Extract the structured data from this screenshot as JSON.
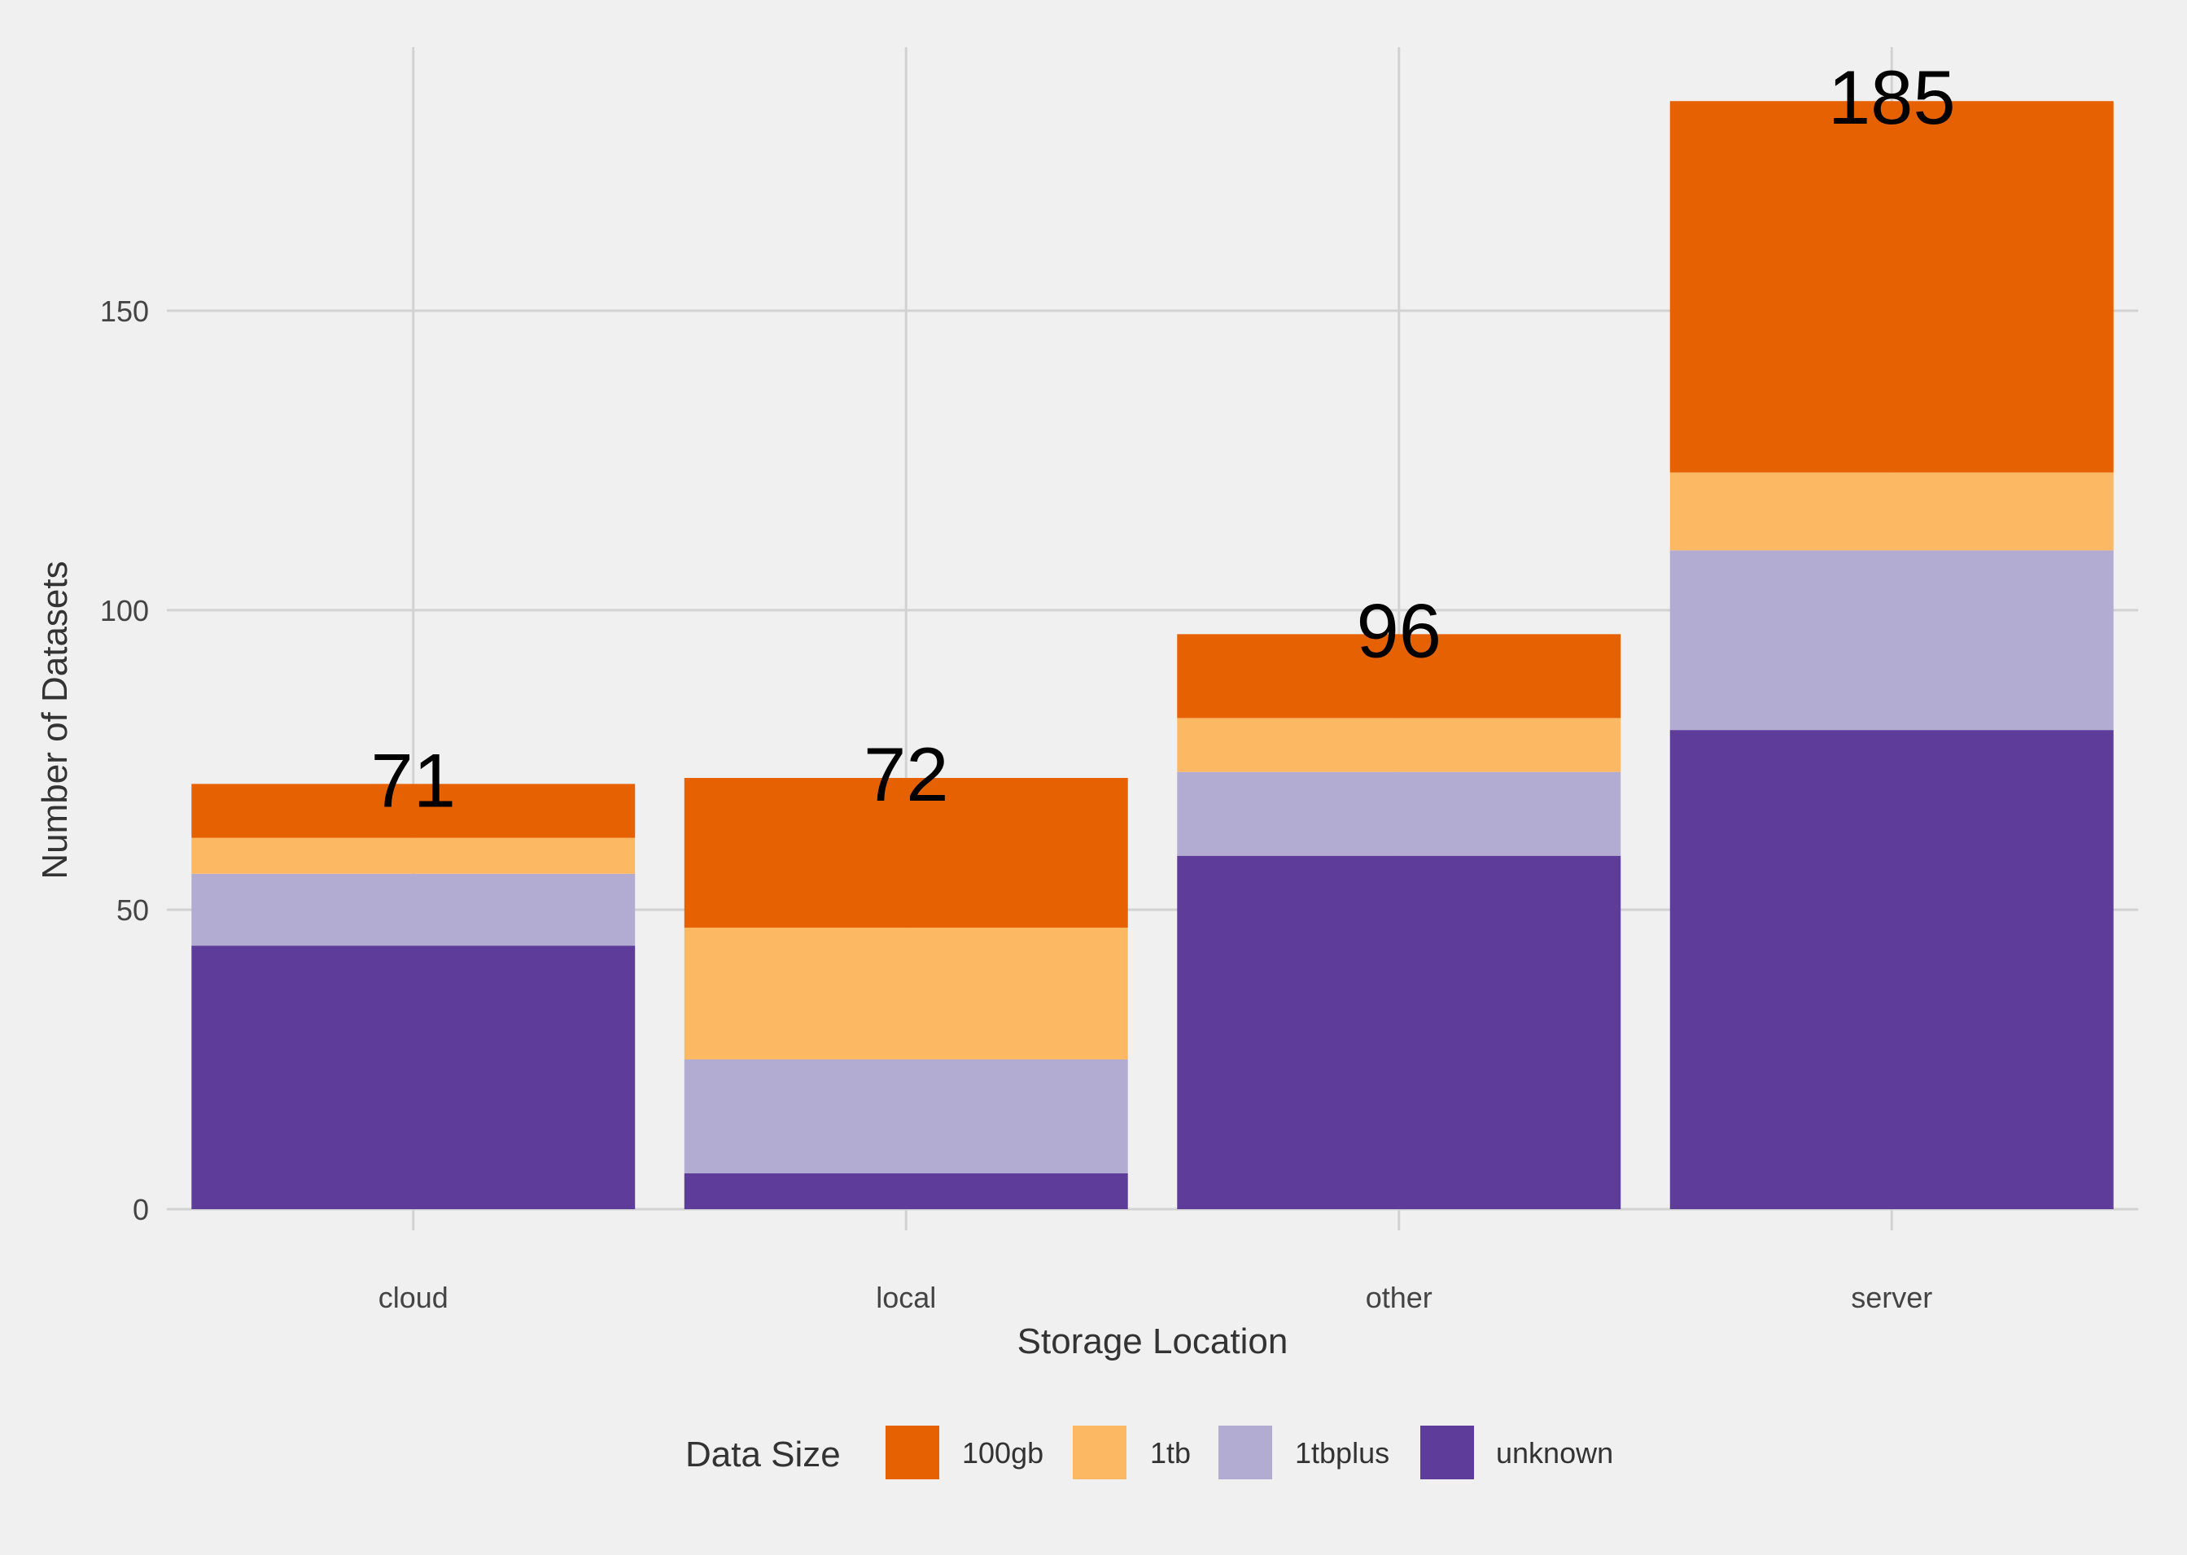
{
  "chart_data": {
    "type": "bar",
    "stacked": true,
    "xlabel": "Storage Location",
    "ylabel": "Number of Datasets",
    "categories": [
      "cloud",
      "local",
      "other",
      "server"
    ],
    "totals": [
      71,
      72,
      96,
      185
    ],
    "series": [
      {
        "name": "100gb",
        "color": "#e66101",
        "values": [
          9,
          25,
          14,
          62
        ]
      },
      {
        "name": "1tb",
        "color": "#fdb863",
        "values": [
          6,
          22,
          9,
          13
        ]
      },
      {
        "name": "1tbplus",
        "color": "#b2abd2",
        "values": [
          12,
          19,
          14,
          30
        ]
      },
      {
        "name": "unknown",
        "color": "#5e3c99",
        "values": [
          44,
          6,
          59,
          80
        ]
      }
    ],
    "yticks": [
      0,
      50,
      100,
      150
    ],
    "ylim": [
      0,
      194
    ],
    "grid": true,
    "legend": {
      "title": "Data Size",
      "position": "bottom"
    }
  }
}
